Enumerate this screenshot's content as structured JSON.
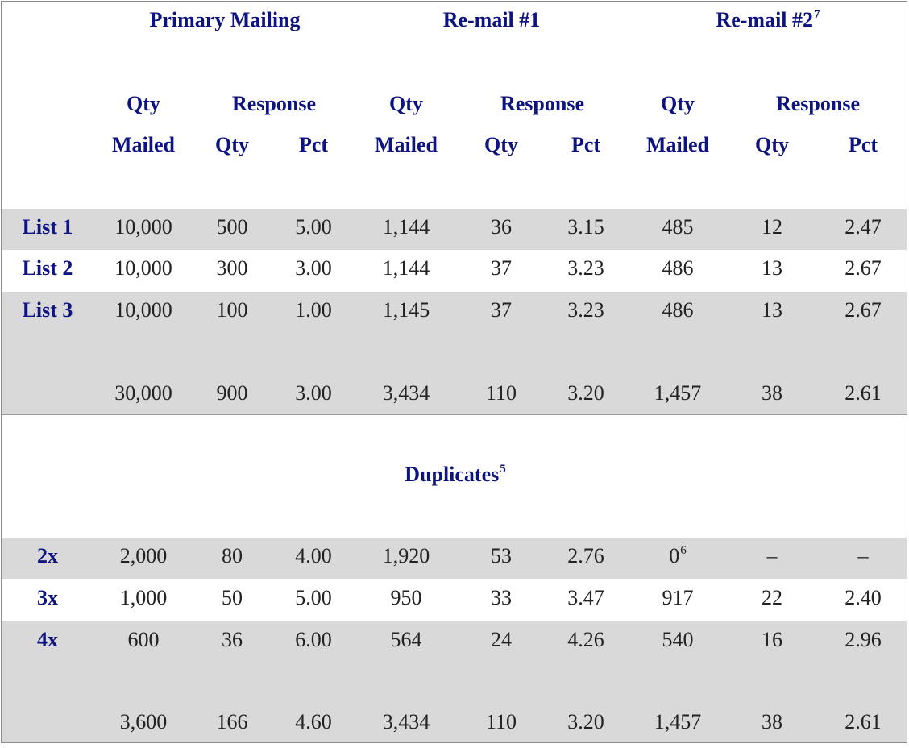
{
  "header": {
    "group1": "Primary Mailing",
    "group2": "Re-mail #1",
    "group3": "Re-mail #2",
    "group3_note": "7",
    "qty_label": "Qty",
    "response_label": "Response",
    "mailed_label": "Mailed",
    "resp_qty_label": "Qty",
    "pct_label": "Pct"
  },
  "lists": [
    {
      "label": "List 1",
      "cells": [
        "10,000",
        "500",
        "5.00",
        "1,144",
        "36",
        "3.15",
        "485",
        "12",
        "2.47"
      ]
    },
    {
      "label": "List 2",
      "cells": [
        "10,000",
        "300",
        "3.00",
        "1,144",
        "37",
        "3.23",
        "486",
        "13",
        "2.67"
      ]
    },
    {
      "label": "List 3",
      "cells": [
        "10,000",
        "100",
        "1.00",
        "1,145",
        "37",
        "3.23",
        "486",
        "13",
        "2.67"
      ]
    }
  ],
  "lists_total": [
    "30,000",
    "900",
    "3.00",
    "3,434",
    "110",
    "3.20",
    "1,457",
    "38",
    "2.61"
  ],
  "duplicates": {
    "title": "Duplicates",
    "title_note": "5",
    "rows": [
      {
        "label": "2x",
        "cells": [
          "2,000",
          "80",
          "4.00",
          "1,920",
          "53",
          "2.76",
          "0",
          "–",
          "–"
        ],
        "note_index": 6,
        "note": "6"
      },
      {
        "label": "3x",
        "cells": [
          "1,000",
          "50",
          "5.00",
          "950",
          "33",
          "3.47",
          "917",
          "22",
          "2.40"
        ]
      },
      {
        "label": "4x",
        "cells": [
          "600",
          "36",
          "6.00",
          "564",
          "24",
          "4.26",
          "540",
          "16",
          "2.96"
        ]
      }
    ],
    "total": [
      "3,600",
      "166",
      "4.60",
      "3,434",
      "110",
      "3.20",
      "1,457",
      "38",
      "2.61"
    ]
  },
  "colors": {
    "header_text": "#0d1380",
    "band": "#d9d9d9",
    "body_text": "#222222"
  }
}
